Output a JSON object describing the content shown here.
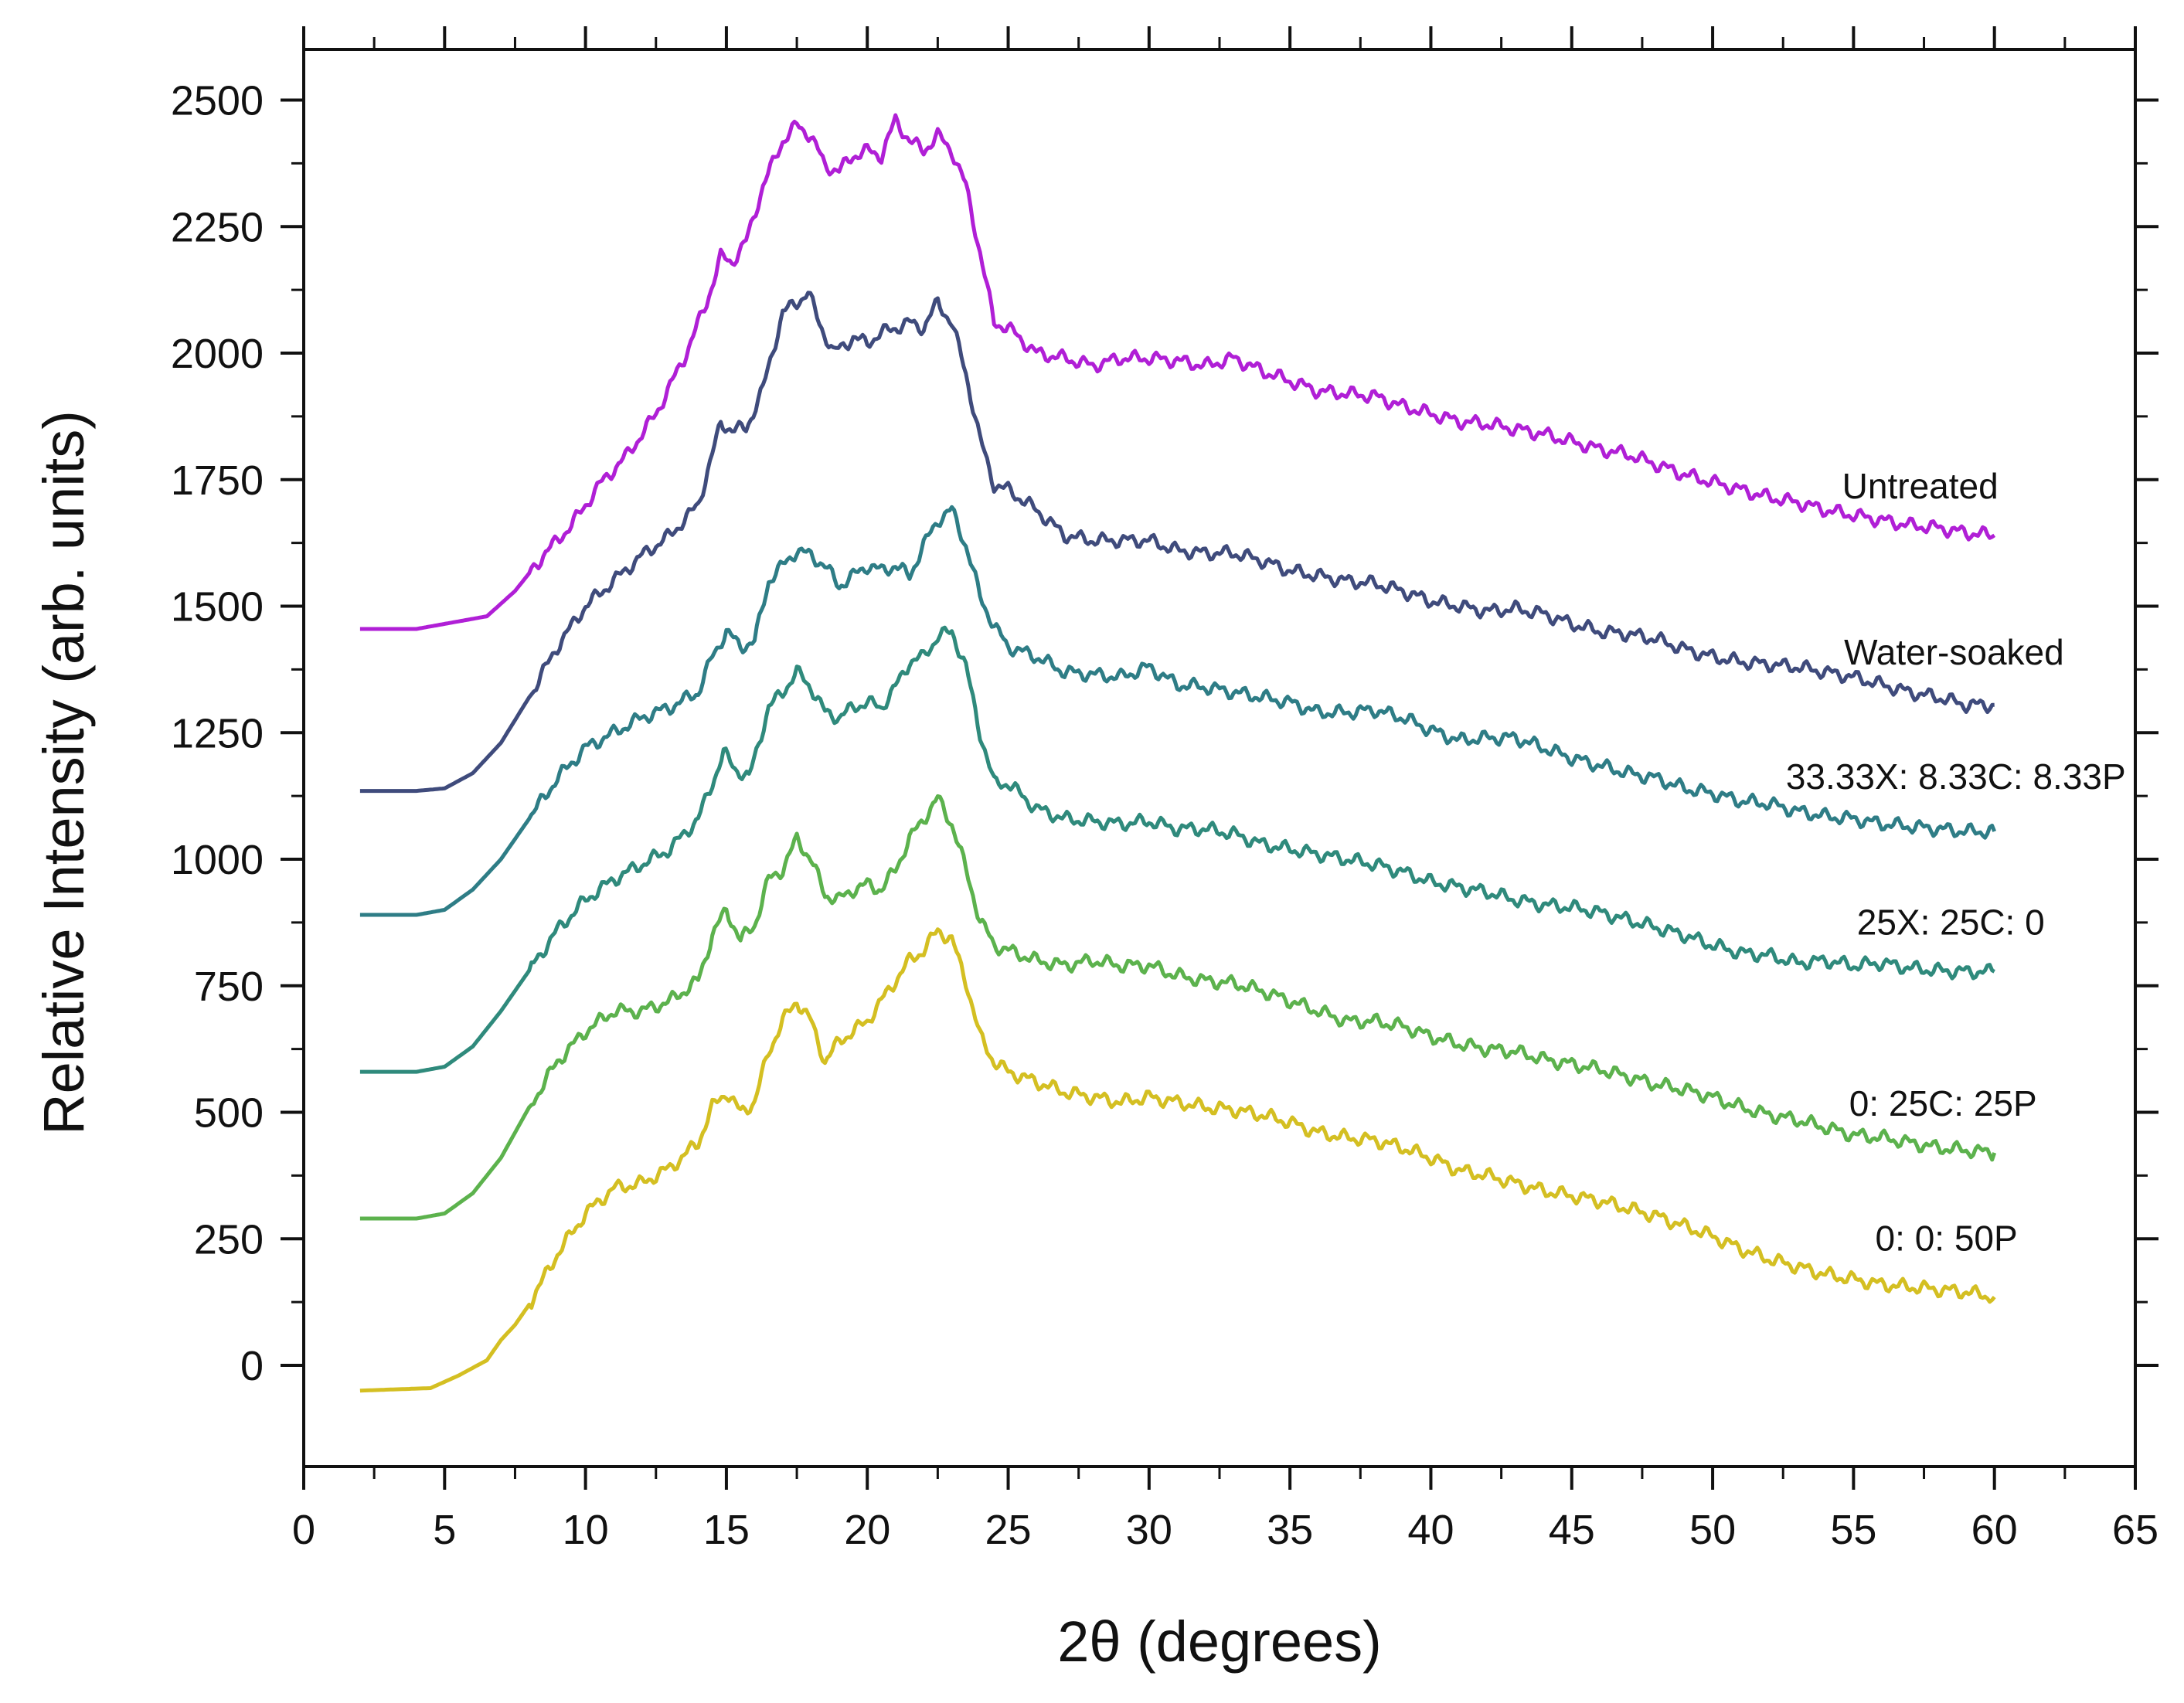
{
  "chart_data": {
    "type": "line",
    "title": "",
    "xlabel": "2θ (degrees)",
    "ylabel": "Relative Intensity (arb. units)",
    "xlim": [
      0,
      65
    ],
    "ylim": [
      -200,
      2600
    ],
    "xticks": [
      0,
      5,
      10,
      15,
      20,
      25,
      30,
      35,
      40,
      45,
      50,
      55,
      60,
      65
    ],
    "yticks": [
      0,
      250,
      500,
      750,
      1000,
      1250,
      1500,
      1750,
      2000,
      2250,
      2500
    ],
    "grid": false,
    "legend": "inline labels at right end of each curve",
    "series": [
      {
        "name": "Untreated",
        "color": "#b01fd6",
        "x": [
          2,
          4,
          5.5,
          6.5,
          7.5,
          8.5,
          9.5,
          10.5,
          11.5,
          12.5,
          13.5,
          14.3,
          14.8,
          15.2,
          15.7,
          16.3,
          17,
          17.5,
          18,
          18.5,
          19,
          19.5,
          20,
          20.5,
          21,
          21.5,
          22,
          22.5,
          23,
          23.5,
          24,
          24.5,
          25,
          26,
          27,
          28,
          29,
          30,
          31,
          32,
          33,
          34,
          35,
          36,
          37,
          38,
          39,
          40,
          41,
          42,
          43,
          44,
          45,
          46,
          47,
          48,
          49,
          50,
          51,
          52,
          53,
          54,
          55,
          56,
          57,
          58,
          59,
          60
        ],
        "values": [
          1455,
          1455,
          1470,
          1480,
          1530,
          1600,
          1660,
          1740,
          1800,
          1880,
          1990,
          2100,
          2190,
          2180,
          2220,
          2330,
          2420,
          2450,
          2430,
          2370,
          2360,
          2390,
          2400,
          2390,
          2460,
          2420,
          2400,
          2430,
          2400,
          2330,
          2200,
          2060,
          2050,
          2000,
          1990,
          1975,
          1990,
          1990,
          1985,
          1975,
          1990,
          1965,
          1945,
          1925,
          1920,
          1915,
          1895,
          1880,
          1865,
          1860,
          1850,
          1840,
          1825,
          1810,
          1800,
          1780,
          1760,
          1745,
          1730,
          1715,
          1705,
          1690,
          1680,
          1670,
          1660,
          1655,
          1645,
          1640
        ]
      },
      {
        "name": "Water-soaked",
        "color": "#3f4b7c",
        "x": [
          2,
          4,
          5,
          6,
          7,
          8,
          9,
          10,
          11,
          12,
          13,
          14,
          14.5,
          14.8,
          15.2,
          15.7,
          16.3,
          17,
          17.5,
          17.9,
          18.3,
          18.8,
          19.5,
          20,
          20.5,
          21,
          21.5,
          22,
          22.5,
          23,
          23.5,
          24,
          24.5,
          25,
          26,
          27,
          28,
          29,
          30,
          31,
          32,
          33,
          34,
          35,
          36,
          37,
          38,
          39,
          40,
          41,
          42,
          43,
          44,
          45,
          46,
          47,
          48,
          49,
          50,
          51,
          52,
          53,
          54,
          55,
          56,
          57,
          58,
          59,
          60
        ],
        "values": [
          1135,
          1135,
          1140,
          1170,
          1230,
          1320,
          1420,
          1500,
          1550,
          1600,
          1640,
          1700,
          1800,
          1860,
          1850,
          1850,
          1930,
          2080,
          2100,
          2120,
          2060,
          2000,
          2030,
          2020,
          2040,
          2050,
          2060,
          2050,
          2100,
          2060,
          1960,
          1830,
          1740,
          1730,
          1690,
          1640,
          1630,
          1630,
          1630,
          1610,
          1605,
          1605,
          1590,
          1570,
          1560,
          1550,
          1545,
          1530,
          1510,
          1500,
          1490,
          1495,
          1485,
          1465,
          1450,
          1445,
          1435,
          1415,
          1400,
          1390,
          1385,
          1380,
          1370,
          1360,
          1345,
          1330,
          1320,
          1305,
          1305
        ]
      },
      {
        "name": "33.33X: 8.33C: 8.33P",
        "color": "#2e7d86",
        "x": [
          2,
          4,
          5,
          6,
          7,
          8,
          9,
          10,
          11,
          12,
          13,
          14,
          14.5,
          15,
          15.5,
          16,
          16.5,
          17,
          17.5,
          18,
          18.5,
          19,
          19.5,
          20,
          20.5,
          21,
          21.5,
          22,
          22.5,
          23,
          23.5,
          24,
          24.5,
          25,
          26,
          27,
          28,
          29,
          30,
          31,
          32,
          33,
          34,
          35,
          36,
          37,
          38,
          39,
          40,
          41,
          42,
          43,
          44,
          45,
          46,
          47,
          48,
          49,
          50,
          51,
          52,
          53,
          54,
          55,
          56,
          57,
          58,
          59,
          60
        ],
        "values": [
          890,
          890,
          900,
          940,
          1000,
          1080,
          1160,
          1220,
          1250,
          1280,
          1300,
          1330,
          1400,
          1450,
          1420,
          1430,
          1550,
          1580,
          1610,
          1600,
          1580,
          1540,
          1560,
          1580,
          1570,
          1580,
          1560,
          1620,
          1670,
          1690,
          1620,
          1520,
          1460,
          1420,
          1400,
          1370,
          1365,
          1360,
          1380,
          1345,
          1340,
          1330,
          1320,
          1310,
          1290,
          1290,
          1295,
          1280,
          1255,
          1235,
          1240,
          1240,
          1220,
          1200,
          1185,
          1170,
          1160,
          1140,
          1130,
          1115,
          1110,
          1095,
          1085,
          1080,
          1070,
          1065,
          1060,
          1055,
          1055
        ]
      },
      {
        "name": "25X: 25C: 0",
        "color": "#2f8a7c",
        "x": [
          2,
          4,
          5,
          6,
          7,
          8,
          9,
          10,
          11,
          12,
          13,
          14,
          14.5,
          14.9,
          15.3,
          15.8,
          16.5,
          17,
          17.5,
          18,
          18.5,
          19,
          19.5,
          20,
          20.5,
          21,
          21.5,
          22,
          22.5,
          23,
          23.5,
          24,
          24.5,
          25,
          26,
          27,
          28,
          29,
          30,
          31,
          32,
          33,
          34,
          35,
          36,
          37,
          38,
          39,
          40,
          41,
          42,
          43,
          44,
          45,
          46,
          47,
          48,
          49,
          50,
          51,
          52,
          53,
          54,
          55,
          56,
          57,
          58,
          59,
          60
        ],
        "values": [
          580,
          580,
          590,
          630,
          700,
          780,
          860,
          920,
          960,
          990,
          1020,
          1080,
          1150,
          1210,
          1180,
          1160,
          1300,
          1330,
          1370,
          1340,
          1290,
          1280,
          1300,
          1310,
          1300,
          1340,
          1390,
          1400,
          1440,
          1450,
          1380,
          1250,
          1150,
          1150,
          1100,
          1080,
          1075,
          1070,
          1075,
          1060,
          1060,
          1050,
          1030,
          1020,
          1010,
          1000,
          990,
          975,
          955,
          945,
          935,
          920,
          910,
          905,
          895,
          880,
          865,
          850,
          830,
          815,
          810,
          795,
          800,
          790,
          795,
          785,
          780,
          778,
          778
        ]
      },
      {
        "name": "0: 25C: 25P",
        "color": "#5cb24d",
        "x": [
          2,
          4,
          5,
          6,
          7,
          8,
          9,
          10,
          11,
          12,
          13,
          14,
          14.5,
          15,
          15.5,
          16,
          16.5,
          17,
          17.5,
          18,
          18.5,
          19,
          19.5,
          20,
          20.5,
          21,
          21.5,
          22,
          22.5,
          23,
          23.5,
          24,
          24.5,
          25,
          26,
          27,
          28,
          29,
          30,
          31,
          32,
          33,
          34,
          35,
          36,
          37,
          38,
          39,
          40,
          41,
          42,
          43,
          44,
          45,
          46,
          47,
          48,
          49,
          50,
          51,
          52,
          53,
          54,
          55,
          56,
          57,
          58,
          59,
          60
        ],
        "values": [
          290,
          290,
          300,
          340,
          410,
          510,
          600,
          660,
          700,
          700,
          720,
          760,
          850,
          900,
          840,
          870,
          960,
          980,
          1040,
          1000,
          930,
          920,
          940,
          950,
          940,
          980,
          1040,
          1080,
          1120,
          1070,
          980,
          880,
          830,
          820,
          800,
          790,
          800,
          790,
          790,
          770,
          760,
          755,
          740,
          720,
          700,
          680,
          680,
          670,
          650,
          635,
          625,
          620,
          605,
          595,
          585,
          570,
          555,
          545,
          530,
          510,
          495,
          485,
          470,
          455,
          450,
          440,
          430,
          425,
          420
        ]
      },
      {
        "name": "0: 0: 50P",
        "color": "#d4bf22",
        "x": [
          2,
          4.5,
          5.5,
          6.5,
          7,
          7.5,
          8,
          9,
          10,
          11,
          12,
          13,
          14,
          14.5,
          15,
          15.5,
          16,
          16.5,
          17,
          17.5,
          18,
          18.5,
          19,
          19.5,
          20,
          20.5,
          21,
          21.5,
          22,
          22.5,
          23,
          23.5,
          24,
          24.5,
          25,
          26,
          27,
          28,
          29,
          30,
          31,
          32,
          33,
          34,
          35,
          36,
          37,
          38,
          39,
          40,
          41,
          42,
          43,
          44,
          45,
          46,
          47,
          48,
          49,
          50,
          51,
          52,
          53,
          54,
          55,
          56,
          57,
          58,
          59,
          60
        ],
        "values": [
          -50,
          -45,
          -20,
          10,
          50,
          80,
          120,
          220,
          300,
          350,
          360,
          390,
          440,
          510,
          540,
          500,
          520,
          620,
          680,
          720,
          680,
          600,
          640,
          660,
          680,
          720,
          760,
          800,
          820,
          860,
          840,
          760,
          650,
          600,
          580,
          560,
          540,
          530,
          520,
          530,
          520,
          510,
          505,
          495,
          480,
          460,
          450,
          445,
          430,
          410,
          385,
          375,
          360,
          345,
          335,
          325,
          310,
          295,
          275,
          255,
          230,
          210,
          195,
          180,
          170,
          160,
          155,
          150,
          145,
          135
        ]
      }
    ]
  }
}
